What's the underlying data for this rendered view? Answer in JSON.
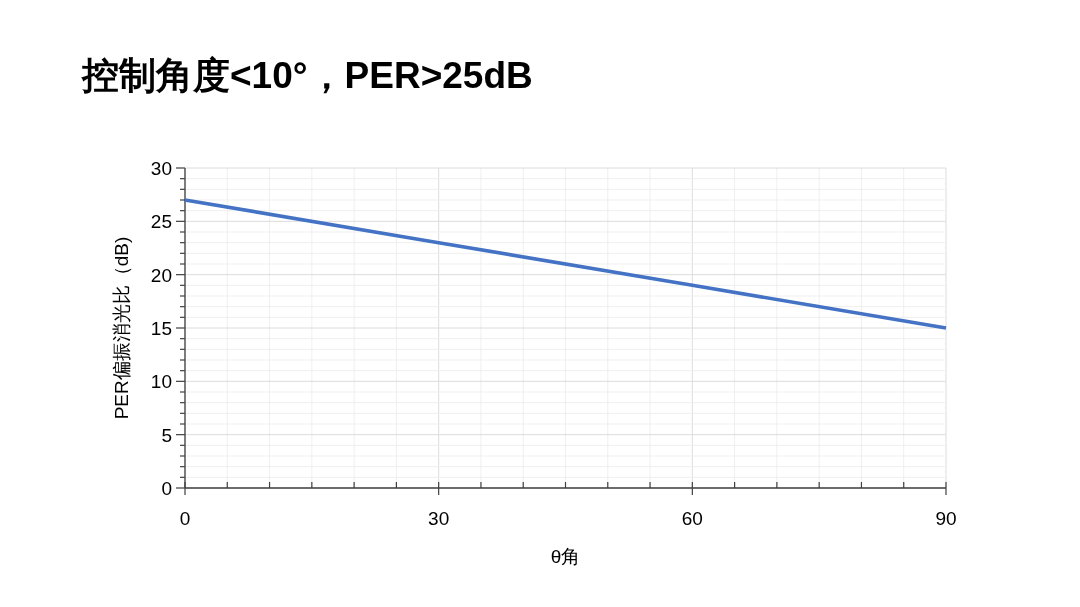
{
  "chart_data": {
    "type": "line",
    "title": "控制角度<10°，PER>25dB",
    "xlabel": "θ角",
    "ylabel": "PER偏振消光比（dB)",
    "x": [
      0,
      30,
      60,
      90
    ],
    "series": [
      {
        "color": "#4472c4",
        "values": [
          27,
          23,
          19,
          15
        ]
      }
    ],
    "xlim": [
      0,
      90
    ],
    "xticks": [
      0,
      {
        "value": 5,
        "label": null
      },
      {
        "value": 10,
        "label": null
      },
      {
        "value": 15,
        "label": null
      },
      {
        "value": 20,
        "label": null
      },
      {
        "value": 25,
        "label": null
      },
      30,
      {
        "value": 35,
        "label": null
      },
      {
        "value": 40,
        "label": null
      },
      {
        "value": 45,
        "label": null
      },
      {
        "value": 50,
        "label": null
      },
      {
        "value": 55,
        "label": null
      },
      60,
      {
        "value": 65,
        "label": null
      },
      {
        "value": 70,
        "label": null
      },
      {
        "value": 75,
        "label": null
      },
      {
        "value": 80,
        "label": null
      },
      {
        "value": 85,
        "label": null
      },
      90
    ],
    "ylim": [
      0,
      30
    ],
    "yticks": [
      0,
      {
        "value": 1,
        "label": null
      },
      {
        "value": 2,
        "label": null
      },
      {
        "value": 3,
        "label": null
      },
      {
        "value": 4,
        "label": null
      },
      5,
      {
        "value": 6,
        "label": null
      },
      {
        "value": 7,
        "label": null
      },
      {
        "value": 8,
        "label": null
      },
      {
        "value": 9,
        "label": null
      },
      10,
      {
        "value": 11,
        "label": null
      },
      {
        "value": 12,
        "label": null
      },
      {
        "value": 13,
        "label": null
      },
      {
        "value": 14,
        "label": null
      },
      15,
      {
        "value": 16,
        "label": null
      },
      {
        "value": 17,
        "label": null
      },
      {
        "value": 18,
        "label": null
      },
      {
        "value": 19,
        "label": null
      },
      20,
      {
        "value": 21,
        "label": null
      },
      {
        "value": 22,
        "label": null
      },
      {
        "value": 23,
        "label": null
      },
      {
        "value": 24,
        "label": null
      },
      25,
      {
        "value": 26,
        "label": null
      },
      {
        "value": 27,
        "label": null
      },
      {
        "value": 28,
        "label": null
      },
      {
        "value": 29,
        "label": null
      },
      30
    ],
    "grid": true,
    "marker": "none",
    "line_style": "solid"
  }
}
